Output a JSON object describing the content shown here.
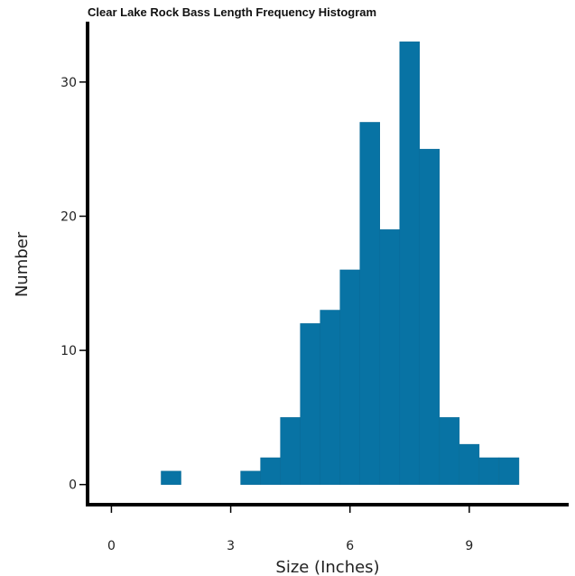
{
  "chart_data": {
    "type": "bar",
    "title": "Clear Lake Rock Bass Length Frequency Histogram",
    "xlabel": "Size (Inches)",
    "ylabel": "Number",
    "bin_width": 0.5,
    "xlim": [
      -0.6,
      11.5
    ],
    "ylim": [
      -1.5,
      34.5
    ],
    "xticks": [
      0,
      3,
      6,
      9
    ],
    "yticks": [
      0,
      10,
      20,
      30
    ],
    "grid": false,
    "color": "#0873a4",
    "bins": [
      {
        "start": 1.25,
        "value": 1
      },
      {
        "start": 3.25,
        "value": 1
      },
      {
        "start": 3.75,
        "value": 2
      },
      {
        "start": 4.25,
        "value": 5
      },
      {
        "start": 4.75,
        "value": 12
      },
      {
        "start": 5.25,
        "value": 13
      },
      {
        "start": 5.75,
        "value": 16
      },
      {
        "start": 6.25,
        "value": 27
      },
      {
        "start": 6.75,
        "value": 19
      },
      {
        "start": 7.25,
        "value": 33
      },
      {
        "start": 7.75,
        "value": 25
      },
      {
        "start": 8.25,
        "value": 5
      },
      {
        "start": 8.75,
        "value": 3
      },
      {
        "start": 9.25,
        "value": 2
      },
      {
        "start": 9.75,
        "value": 2
      }
    ]
  }
}
